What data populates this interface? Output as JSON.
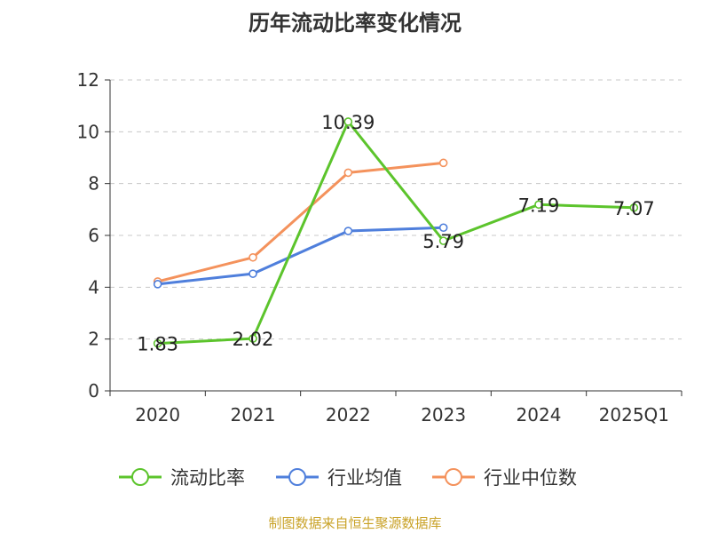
{
  "source_note": "制图数据来自恒生聚源数据库",
  "chart_data": {
    "type": "line",
    "title": "历年流动比率变化情况",
    "categories": [
      "2020",
      "2021",
      "2022",
      "2023",
      "2024",
      "2025Q1"
    ],
    "ylim": [
      0,
      12
    ],
    "yticks": [
      0,
      2,
      4,
      6,
      8,
      10,
      12
    ],
    "grid": true,
    "legend_position": "bottom",
    "series": [
      {
        "name": "流动比率",
        "color": "#5cc42c",
        "values": [
          1.83,
          2.02,
          10.39,
          5.79,
          7.19,
          7.07
        ],
        "labels": [
          "1.83",
          "2.02",
          "10.39",
          "5.79",
          "7.19",
          "7.07"
        ]
      },
      {
        "name": "行业均值",
        "color": "#4f7fdc",
        "values": [
          4.12,
          4.52,
          6.17,
          6.3,
          null,
          null
        ]
      },
      {
        "name": "行业中位数",
        "color": "#f4925c",
        "values": [
          4.22,
          5.15,
          8.42,
          8.8,
          null,
          null
        ]
      }
    ]
  }
}
